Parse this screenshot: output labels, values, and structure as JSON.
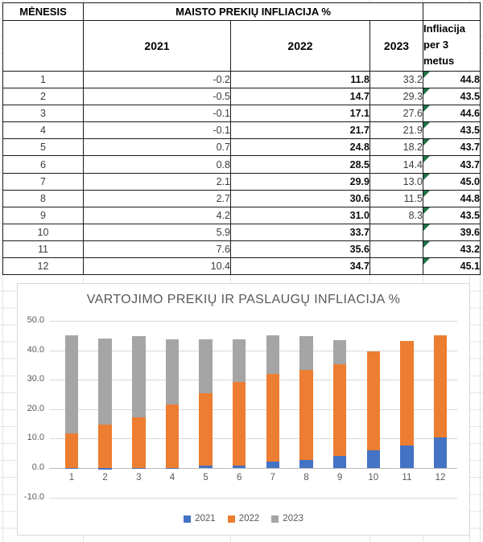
{
  "table": {
    "col_month_header": "MĖNESIS",
    "main_header": "MAISTO PREKIŲ INFLIACIJA %",
    "year_headers": [
      "2021",
      "2022",
      "2023"
    ],
    "last_col_header": "Infliacija per 3 metus",
    "rows": [
      {
        "month": "1",
        "y2021": "-0.2",
        "y2022": "11.8",
        "y2023": "33.2",
        "total": "44.8"
      },
      {
        "month": "2",
        "y2021": "-0.5",
        "y2022": "14.7",
        "y2023": "29.3",
        "total": "43.5"
      },
      {
        "month": "3",
        "y2021": "-0.1",
        "y2022": "17.1",
        "y2023": "27.6",
        "total": "44.6"
      },
      {
        "month": "4",
        "y2021": "-0.1",
        "y2022": "21.7",
        "y2023": "21.9",
        "total": "43.5"
      },
      {
        "month": "5",
        "y2021": "0.7",
        "y2022": "24.8",
        "y2023": "18.2",
        "total": "43.7"
      },
      {
        "month": "6",
        "y2021": "0.8",
        "y2022": "28.5",
        "y2023": "14.4",
        "total": "43.7"
      },
      {
        "month": "7",
        "y2021": "2.1",
        "y2022": "29.9",
        "y2023": "13.0",
        "total": "45.0"
      },
      {
        "month": "8",
        "y2021": "2.7",
        "y2022": "30.6",
        "y2023": "11.5",
        "total": "44.8"
      },
      {
        "month": "9",
        "y2021": "4.2",
        "y2022": "31.0",
        "y2023": "8.3",
        "total": "43.5"
      },
      {
        "month": "10",
        "y2021": "5.9",
        "y2022": "33.7",
        "y2023": "",
        "total": "39.6"
      },
      {
        "month": "11",
        "y2021": "7.6",
        "y2022": "35.6",
        "y2023": "",
        "total": "43.2"
      },
      {
        "month": "12",
        "y2021": "10.4",
        "y2022": "34.7",
        "y2023": "",
        "total": "45.1"
      }
    ]
  },
  "chart_data": {
    "type": "bar",
    "stacked": true,
    "title": "VARTOJIMO PREKIŲ IR PASLAUGŲ INFLIACIJA %",
    "categories": [
      "1",
      "2",
      "3",
      "4",
      "5",
      "6",
      "7",
      "8",
      "9",
      "10",
      "11",
      "12"
    ],
    "series": [
      {
        "name": "2021",
        "color": "#4472C4",
        "values": [
          -0.2,
          -0.5,
          -0.1,
          -0.1,
          0.7,
          0.8,
          2.1,
          2.7,
          4.2,
          5.9,
          7.6,
          10.4
        ]
      },
      {
        "name": "2022",
        "color": "#ED7D31",
        "values": [
          11.8,
          14.7,
          17.1,
          21.7,
          24.8,
          28.5,
          29.9,
          30.6,
          31.0,
          33.7,
          35.6,
          34.7
        ]
      },
      {
        "name": "2023",
        "color": "#A5A5A5",
        "values": [
          33.2,
          29.3,
          27.6,
          21.9,
          18.2,
          14.4,
          13.0,
          11.5,
          8.3,
          null,
          null,
          null
        ]
      }
    ],
    "xlabel": "",
    "ylabel": "",
    "ylim": [
      -10,
      50
    ],
    "ytick_step": 10,
    "ytick_labels": [
      "50.0",
      "40.0",
      "30.0",
      "20.0",
      "10.0",
      "0.0",
      "-10.0"
    ],
    "grid": true,
    "legend_position": "bottom"
  },
  "colors": {
    "error_triangle": "#1e7145",
    "gridline": "#d9d9d9",
    "axis_text": "#595959",
    "table_border": "#1a1a1a"
  }
}
